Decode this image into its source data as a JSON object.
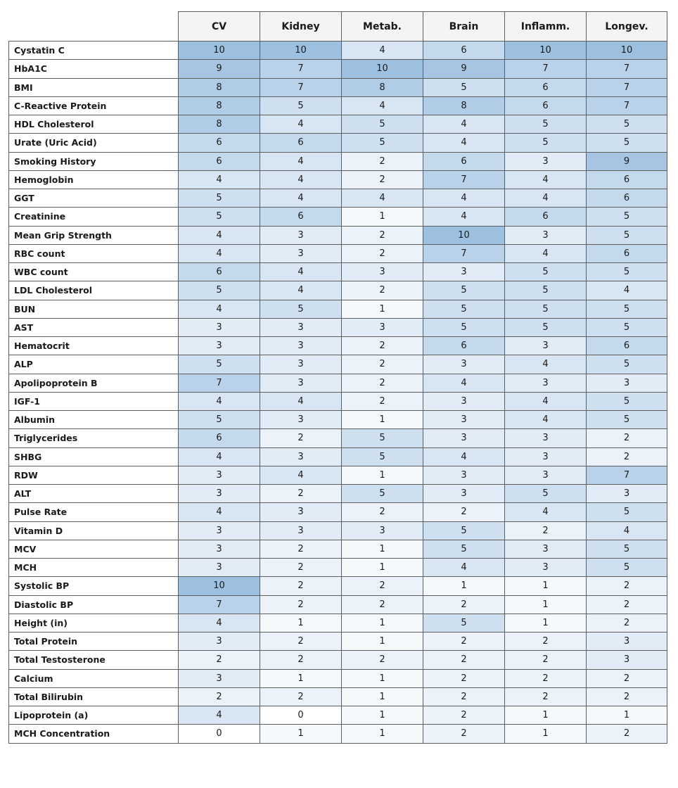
{
  "chart_data": {
    "type": "heatmap",
    "columns": [
      "CV",
      "Kidney",
      "Metab.",
      "Brain",
      "Inflamm.",
      "Longev."
    ],
    "rows": [
      {
        "label": "Cystatin C",
        "values": [
          10,
          10,
          4,
          6,
          10,
          10
        ]
      },
      {
        "label": "HbA1C",
        "values": [
          9,
          7,
          10,
          9,
          7,
          7
        ]
      },
      {
        "label": "BMI",
        "values": [
          8,
          7,
          8,
          5,
          6,
          7
        ]
      },
      {
        "label": "C-Reactive Protein",
        "values": [
          8,
          5,
          4,
          8,
          6,
          7
        ]
      },
      {
        "label": "HDL Cholesterol",
        "values": [
          8,
          4,
          5,
          4,
          5,
          5
        ]
      },
      {
        "label": "Urate (Uric Acid)",
        "values": [
          6,
          6,
          5,
          4,
          5,
          5
        ]
      },
      {
        "label": "Smoking History",
        "values": [
          6,
          4,
          2,
          6,
          3,
          9
        ]
      },
      {
        "label": "Hemoglobin",
        "values": [
          4,
          4,
          2,
          7,
          4,
          6
        ]
      },
      {
        "label": "GGT",
        "values": [
          5,
          4,
          4,
          4,
          4,
          6
        ]
      },
      {
        "label": "Creatinine",
        "values": [
          5,
          6,
          1,
          4,
          6,
          5
        ]
      },
      {
        "label": "Mean Grip Strength",
        "values": [
          4,
          3,
          2,
          10,
          3,
          5
        ]
      },
      {
        "label": "RBC count",
        "values": [
          4,
          3,
          2,
          7,
          4,
          6
        ]
      },
      {
        "label": "WBC count",
        "values": [
          6,
          4,
          3,
          3,
          5,
          5
        ]
      },
      {
        "label": "LDL Cholesterol",
        "values": [
          5,
          4,
          2,
          5,
          5,
          4
        ]
      },
      {
        "label": "BUN",
        "values": [
          4,
          5,
          1,
          5,
          5,
          5
        ]
      },
      {
        "label": "AST",
        "values": [
          3,
          3,
          3,
          5,
          5,
          5
        ]
      },
      {
        "label": "Hematocrit",
        "values": [
          3,
          3,
          2,
          6,
          3,
          6
        ]
      },
      {
        "label": "ALP",
        "values": [
          5,
          3,
          2,
          3,
          4,
          5
        ]
      },
      {
        "label": "Apolipoprotein B",
        "values": [
          7,
          3,
          2,
          4,
          3,
          3
        ]
      },
      {
        "label": "IGF-1",
        "values": [
          4,
          4,
          2,
          3,
          4,
          5
        ]
      },
      {
        "label": "Albumin",
        "values": [
          5,
          3,
          1,
          3,
          4,
          5
        ]
      },
      {
        "label": "Triglycerides",
        "values": [
          6,
          2,
          5,
          3,
          3,
          2
        ]
      },
      {
        "label": "SHBG",
        "values": [
          4,
          3,
          5,
          4,
          3,
          2
        ]
      },
      {
        "label": "RDW",
        "values": [
          3,
          4,
          1,
          3,
          3,
          7
        ]
      },
      {
        "label": "ALT",
        "values": [
          3,
          2,
          5,
          3,
          5,
          3
        ]
      },
      {
        "label": "Pulse Rate",
        "values": [
          4,
          3,
          2,
          2,
          4,
          5
        ]
      },
      {
        "label": "Vitamin D",
        "values": [
          3,
          3,
          3,
          5,
          2,
          4
        ]
      },
      {
        "label": "MCV",
        "values": [
          3,
          2,
          1,
          5,
          3,
          5
        ]
      },
      {
        "label": "MCH",
        "values": [
          3,
          2,
          1,
          4,
          3,
          5
        ]
      },
      {
        "label": "Systolic BP",
        "values": [
          10,
          2,
          2,
          1,
          1,
          2
        ]
      },
      {
        "label": "Diastolic BP",
        "values": [
          7,
          2,
          2,
          2,
          1,
          2
        ]
      },
      {
        "label": "Height (in)",
        "values": [
          4,
          1,
          1,
          5,
          1,
          2
        ]
      },
      {
        "label": "Total Protein",
        "values": [
          3,
          2,
          1,
          2,
          2,
          3
        ]
      },
      {
        "label": "Total Testosterone",
        "values": [
          2,
          2,
          2,
          2,
          2,
          3
        ]
      },
      {
        "label": "Calcium",
        "values": [
          3,
          1,
          1,
          2,
          2,
          2
        ]
      },
      {
        "label": "Total Bilirubin",
        "values": [
          2,
          2,
          1,
          2,
          2,
          2
        ]
      },
      {
        "label": "Lipoprotein (a)",
        "values": [
          4,
          0,
          1,
          2,
          1,
          1
        ]
      },
      {
        "label": "MCH Concentration",
        "values": [
          0,
          1,
          1,
          2,
          1,
          2
        ]
      }
    ],
    "value_range": [
      0,
      10
    ],
    "color_low": "#ffffff",
    "color_high": "#9dbfe0",
    "header_background": "#f4f4f4",
    "border_color": "#5e5e5e"
  }
}
